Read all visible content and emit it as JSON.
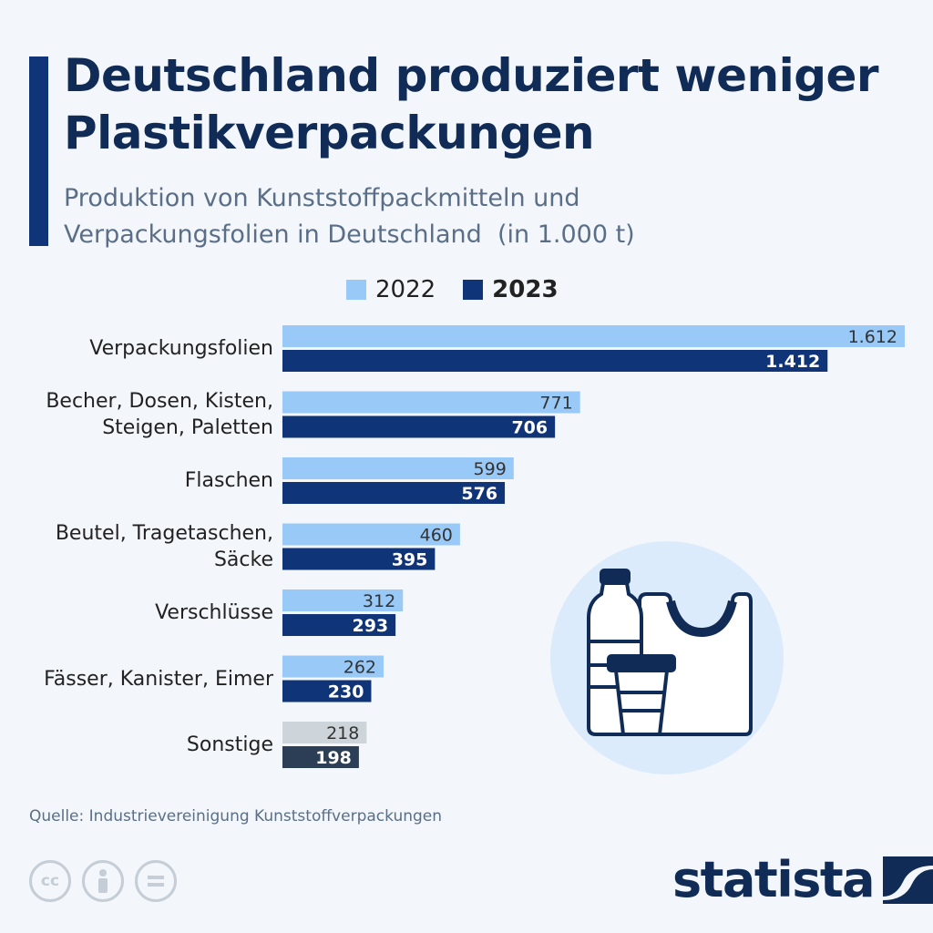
{
  "header": {
    "title": "Deutschland produziert weniger Plastikverpackungen",
    "subtitle": "Produktion von Kunststoffpackmitteln und\nVerpackungsfolien in Deutschland  (in 1.000 t)"
  },
  "legend": {
    "items": [
      {
        "label": "2022",
        "color": "#99c9f7"
      },
      {
        "label": "2023",
        "color": "#0f3478"
      }
    ]
  },
  "colors": {
    "bar_2022": "#99c9f7",
    "bar_2023": "#0f3478",
    "bar_other_2022": "#cdd5db",
    "bar_other_2023": "#2c3e55"
  },
  "chart_data": {
    "type": "bar",
    "orientation": "horizontal",
    "categories": [
      "Verpackungsfolien",
      "Becher, Dosen, Kisten,\nSteigen, Paletten",
      "Flaschen",
      "Beutel, Tragetaschen,\nSäcke",
      "Verschlüsse",
      "Fässer, Kanister, Eimer",
      "Sonstige"
    ],
    "series": [
      {
        "name": "2022",
        "values": [
          1612,
          771,
          599,
          460,
          312,
          262,
          218
        ],
        "labels": [
          "1.612",
          "771",
          "599",
          "460",
          "312",
          "262",
          "218"
        ]
      },
      {
        "name": "2023",
        "values": [
          1412,
          706,
          576,
          395,
          293,
          230,
          198
        ],
        "labels": [
          "1.412",
          "706",
          "576",
          "395",
          "293",
          "230",
          "198"
        ]
      }
    ],
    "xlim": [
      0,
      1612
    ],
    "grid": false,
    "legend_position": "top-center"
  },
  "footer": {
    "source": "Quelle: Industrievereinigung Kunststoffverpackungen",
    "brand": "statista",
    "cc_icons": [
      "cc-icon",
      "by-icon",
      "nd-icon"
    ]
  },
  "illustration": {
    "icons": [
      "bottle-icon",
      "bag-icon",
      "cup-icon"
    ]
  }
}
